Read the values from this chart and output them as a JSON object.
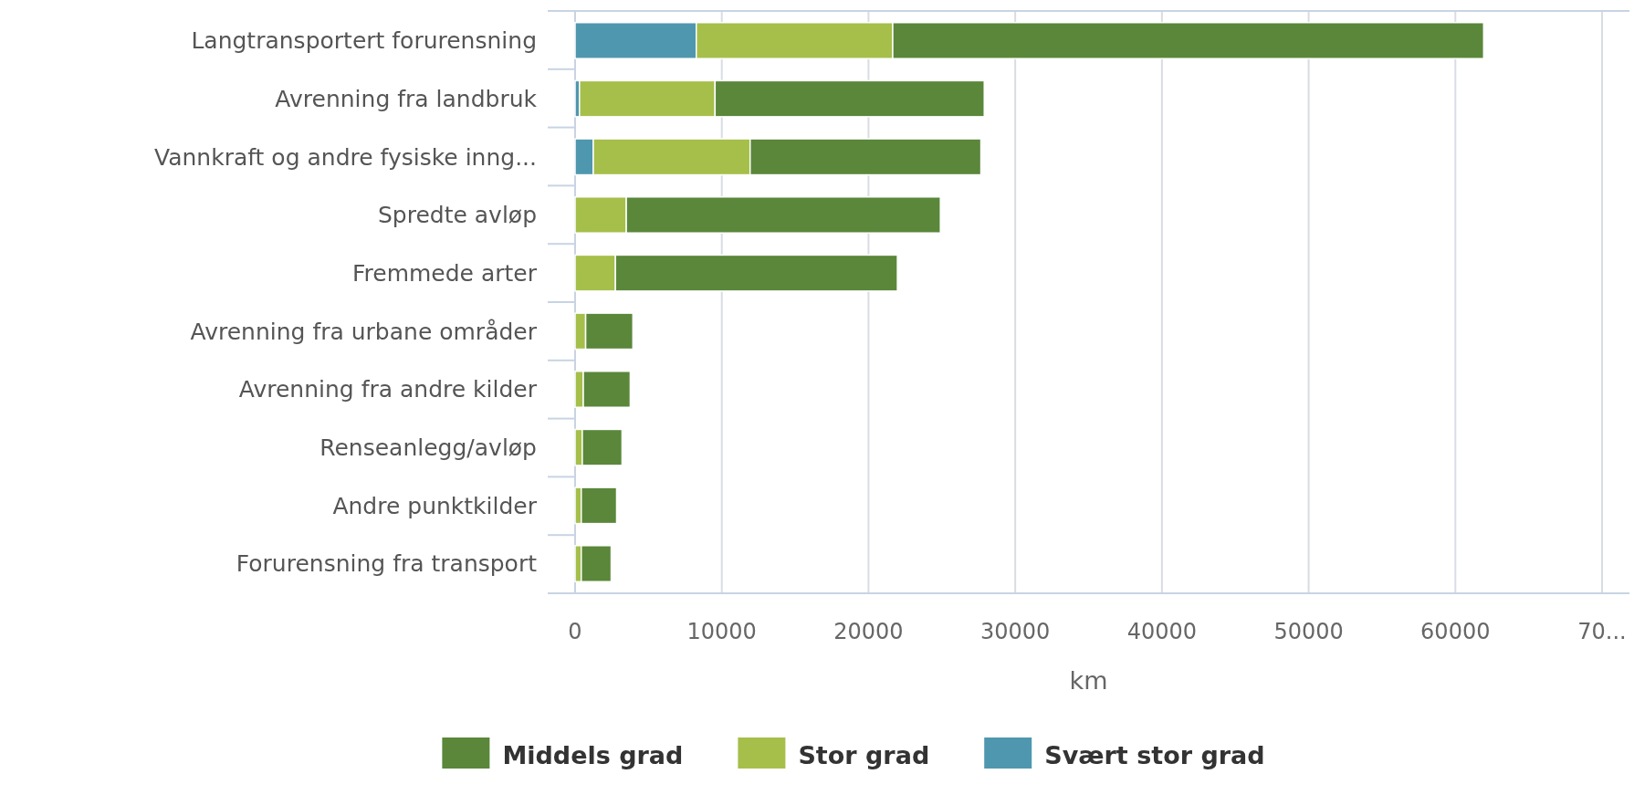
{
  "chart_data": {
    "type": "bar",
    "orientation": "horizontal",
    "stacked": true,
    "xlabel": "km",
    "categories": [
      "Langtransportert forurensning",
      "Avrenning fra landbruk",
      "Vannkraft og andre fysiske inng...",
      "Spredte avløp",
      "Fremmede arter",
      "Avrenning fra urbane områder",
      "Avrenning fra andre kilder",
      "Renseanlegg/avløp",
      "Andre punktkilder",
      "Forurensning fra transport"
    ],
    "series": [
      {
        "name": "Svært stor grad",
        "color": "#4f97ae",
        "values": [
          8260,
          300,
          1240,
          0,
          0,
          0,
          0,
          0,
          0,
          0
        ]
      },
      {
        "name": "Stor grad",
        "color": "#a5bf4a",
        "values": [
          13390,
          9240,
          10690,
          3490,
          2750,
          720,
          560,
          490,
          420,
          420
        ]
      },
      {
        "name": "Middels grad",
        "color": "#5a873a",
        "values": [
          40280,
          18350,
          15730,
          21410,
          19220,
          3220,
          3200,
          2710,
          2410,
          2040
        ]
      }
    ],
    "xlim": [
      0,
      70000
    ],
    "xticks": [
      0,
      10000,
      20000,
      30000,
      40000,
      50000,
      60000,
      {
        "value": 70000,
        "label": "70..."
      }
    ],
    "grid": "x",
    "legend": "bottom"
  }
}
